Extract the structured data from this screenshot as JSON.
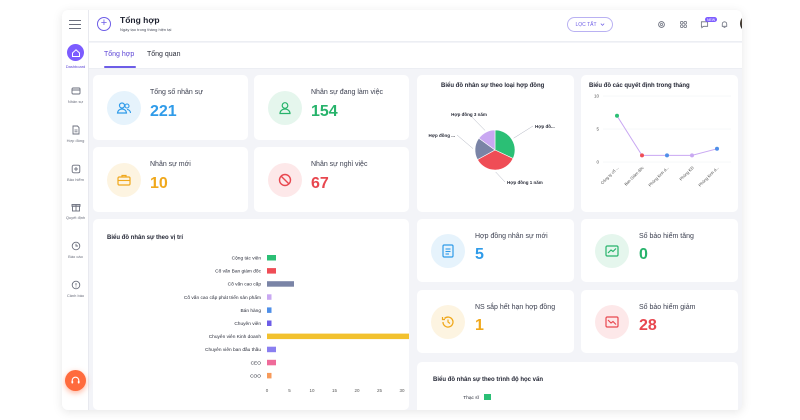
{
  "sidebar": {
    "items": [
      {
        "label": "Dashboard",
        "icon": "home-icon",
        "active": true
      },
      {
        "label": "Nhân sự",
        "icon": "id-card-icon"
      },
      {
        "label": "Hợp đồng",
        "icon": "document-icon"
      },
      {
        "label": "Bảo hiểm",
        "icon": "medical-plus-icon"
      },
      {
        "label": "Quyết định",
        "icon": "gift-icon"
      },
      {
        "label": "Báo cáo",
        "icon": "chart-clock-icon"
      },
      {
        "label": "Cảnh báo",
        "icon": "warning-icon"
      }
    ]
  },
  "header": {
    "title": "Tổng hợp",
    "subtitle": "Ngày tạo trong tháng hiện tại",
    "filter_label": "LỌC TẤT",
    "notification_badge": "NEW"
  },
  "tabs": [
    {
      "label": "Tổng hợp",
      "active": true
    },
    {
      "label": "Tổng quan",
      "active": false
    }
  ],
  "stats": {
    "total": {
      "label": "Tổng số nhân sự",
      "value": "221",
      "color": "#2f9be9"
    },
    "working": {
      "label": "Nhân sự đang làm việc",
      "value": "154",
      "color": "#27b36b"
    },
    "new": {
      "label": "Nhân sự mới",
      "value": "10",
      "color": "#f0a81c"
    },
    "resigned": {
      "label": "Nhân sự nghỉ việc",
      "value": "67",
      "color": "#e8474f"
    },
    "new_contracts": {
      "label": "Hợp đồng nhân sự mới",
      "value": "5",
      "color": "#2f9be9"
    },
    "insurance_up": {
      "label": "Số bảo hiểm tăng",
      "value": "0",
      "color": "#27b36b"
    },
    "expiring": {
      "label": "NS sắp hết hạn hợp đồng",
      "value": "1",
      "color": "#f0a81c"
    },
    "insurance_down": {
      "label": "Số bảo hiểm giảm",
      "value": "28",
      "color": "#e8474f"
    }
  },
  "chart_data": [
    {
      "type": "pie",
      "title": "Biểu đồ nhân sự theo loại hợp đồng",
      "labels": [
        "Hợp đồ...",
        "Hợp đồng 1 năm",
        "Hợp đồng ...",
        "Hợp đồng 3 năm"
      ],
      "values": [
        32,
        35,
        18,
        15
      ],
      "colors": [
        "#2bbf75",
        "#ef4d56",
        "#7a84a6",
        "#c9a8f2"
      ]
    },
    {
      "type": "line",
      "title": "Biểu đồ các quyết định trong tháng",
      "categories": [
        "Công ty cổ ...",
        "Ban Giám đốc",
        "Phòng kinh d...",
        "Phòng KD",
        "Phòng kinh d..."
      ],
      "values": [
        7,
        1,
        1,
        1,
        2
      ],
      "point_colors": [
        "#2bbf75",
        "#ef4d56",
        "#4f8fe8",
        "#c9a8f2",
        "#4f8fe8"
      ],
      "ylim": [
        0,
        10
      ],
      "yticks": [
        0,
        5,
        10
      ]
    },
    {
      "type": "bar",
      "orientation": "horizontal",
      "title": "Biểu đồ nhân sự theo vị trí",
      "categories": [
        "Cộng tác viên",
        "Cố vấn Ban giám đốc",
        "Cố vấn cao cấp",
        "Cố vấn cao cấp phát triển sản phẩm",
        "Bán hàng",
        "Chuyên viên",
        "Chuyên viên Kinh doanh",
        "Chuyên viên ban đầu thầu",
        "CEO",
        "COO"
      ],
      "values": [
        2,
        2,
        6,
        1,
        1,
        1,
        36,
        2,
        2,
        1
      ],
      "colors": [
        "#2bbf75",
        "#ef4d56",
        "#7a84a6",
        "#c9a8f2",
        "#4f8fe8",
        "#6d5de7",
        "#f2c12e",
        "#8a7ff0",
        "#ef6b9a",
        "#f79a5a"
      ],
      "xlim": [
        0,
        40
      ],
      "xticks": [
        0,
        5,
        10,
        15,
        20,
        25,
        30,
        35,
        40
      ]
    },
    {
      "type": "bar",
      "orientation": "horizontal",
      "title": "Biểu đồ nhân sự theo trình độ học vấn",
      "categories": [
        "Thạc sĩ"
      ],
      "values": [
        1
      ],
      "colors": [
        "#2bbf75"
      ]
    }
  ]
}
